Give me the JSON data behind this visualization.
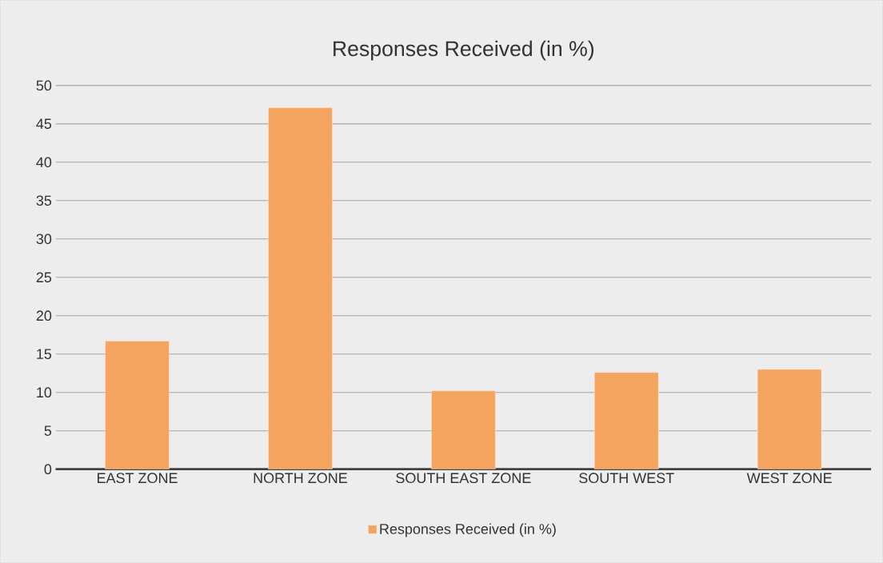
{
  "chart_data": {
    "type": "bar",
    "title": "Responses Received (in %)",
    "categories": [
      "EAST ZONE",
      "NORTH ZONE",
      "SOUTH EAST ZONE",
      "SOUTH WEST",
      "WEST ZONE"
    ],
    "series": [
      {
        "name": "Responses Received (in %)",
        "color": "#f5a460",
        "values": [
          16.7,
          47.1,
          10.2,
          12.6,
          13.0
        ]
      }
    ],
    "ylim": [
      0,
      50
    ],
    "yticks": [
      0,
      5,
      10,
      15,
      20,
      25,
      30,
      35,
      40,
      45,
      50
    ],
    "grid": "y",
    "legend": "bottom"
  }
}
